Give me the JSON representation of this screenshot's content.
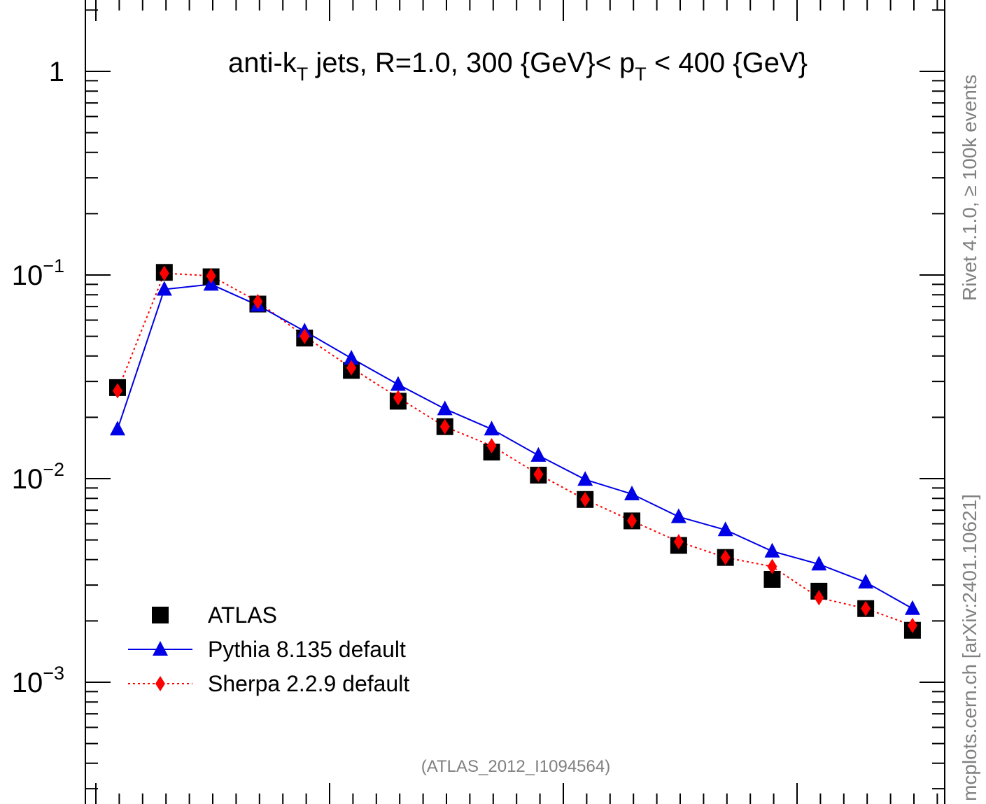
{
  "chart_data": {
    "type": "scatter",
    "title": "",
    "annotation_main": "anti-k",
    "annotation_main_sub": "T",
    "annotation_mid": " jets, R=1.0, 300 {GeV}< p",
    "annotation_mid_sub": "T",
    "annotation_end": " < 400 {GeV}",
    "footer_note": "(ATLAS_2012_I1094564)",
    "side_text_top": "Rivet 4.1.0, ≥ 100k events",
    "side_text_bottom": "mcplots.cern.ch [arXiv:2401.10621]",
    "xlabel": "",
    "ylabel": "",
    "y_scale": "log",
    "ylim": [
      0.0003,
      1.8
    ],
    "y_ticks": [
      {
        "value": 1,
        "base": "1",
        "exp": ""
      },
      {
        "value": 0.1,
        "base": "10",
        "exp": "−1"
      },
      {
        "value": 0.01,
        "base": "10",
        "exp": "−2"
      },
      {
        "value": 0.001,
        "base": "10",
        "exp": "−3"
      }
    ],
    "x": [
      1,
      2,
      3,
      4,
      5,
      6,
      7,
      8,
      9,
      10,
      11,
      12,
      13,
      14,
      15,
      16,
      17,
      18
    ],
    "xlim": [
      0.45,
      18.45
    ],
    "legend_position": "bottom-left",
    "series": [
      {
        "name": "ATLAS",
        "marker": "square",
        "color": "#000000",
        "values": [
          0.028,
          0.103,
          0.098,
          0.072,
          0.049,
          0.034,
          0.024,
          0.018,
          0.0135,
          0.0104,
          0.0079,
          0.0062,
          0.0047,
          0.0041,
          0.0032,
          0.0028,
          0.0023,
          0.0018
        ]
      },
      {
        "name": "Pythia 8.135 default",
        "marker": "triangle",
        "color": "#0000e6",
        "line": "solid",
        "values": [
          0.0175,
          0.085,
          0.09,
          0.071,
          0.053,
          0.039,
          0.029,
          0.022,
          0.0175,
          0.013,
          0.0099,
          0.0084,
          0.0065,
          0.0056,
          0.0044,
          0.0038,
          0.0031,
          0.0023
        ]
      },
      {
        "name": "Sherpa 2.2.9 default",
        "marker": "diamond",
        "color": "#ff0000",
        "line": "dotted",
        "values": [
          0.027,
          0.102,
          0.099,
          0.074,
          0.05,
          0.035,
          0.025,
          0.018,
          0.0145,
          0.0105,
          0.0079,
          0.0062,
          0.0049,
          0.0041,
          0.0037,
          0.0026,
          0.0023,
          0.0019
        ]
      }
    ]
  }
}
